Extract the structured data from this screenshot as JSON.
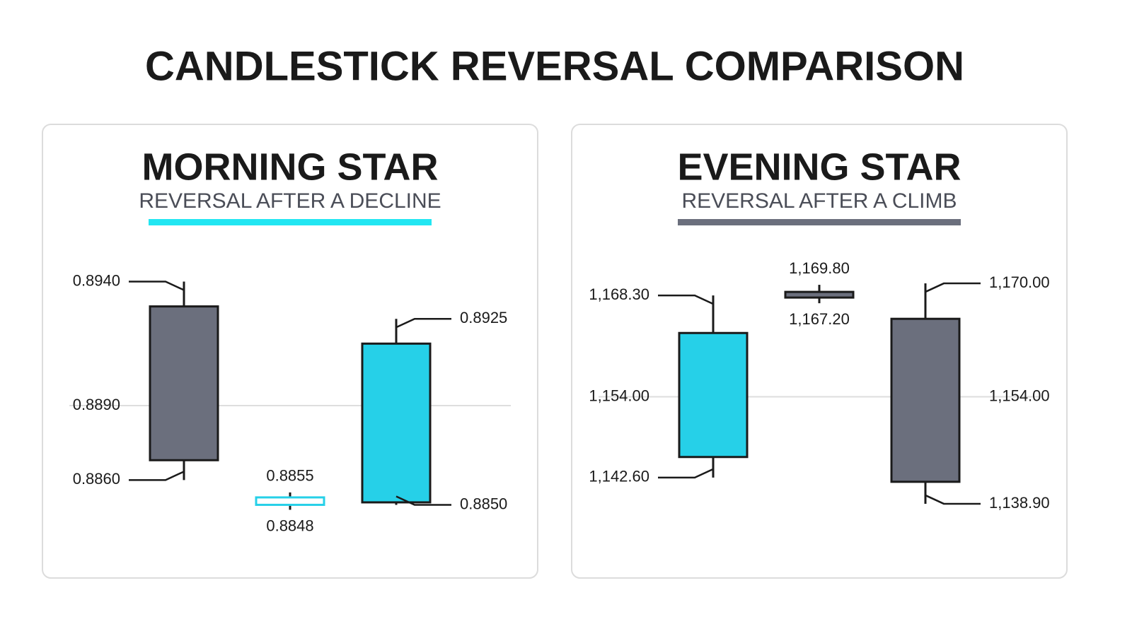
{
  "title": "CANDLESTICK REVERSAL COMPARISON",
  "chart_data": [
    {
      "type": "candlestick",
      "title": "MORNING STAR",
      "subtitle": "REVERSAL AFTER A DECLINE",
      "accent": "#22e6f2",
      "ylim": [
        0.8845,
        0.8945
      ],
      "yticks": [
        {
          "value": 0.889,
          "label": "0.8890"
        }
      ],
      "grid": true,
      "open": [
        0.893,
        0.885,
        0.8851
      ],
      "high": [
        0.894,
        0.8855,
        0.8925
      ],
      "low": [
        0.886,
        0.8848,
        0.885
      ],
      "close": [
        0.8868,
        0.8853,
        0.8915
      ],
      "high_labels": [
        "0.8940",
        "0.8855",
        "0.8925"
      ],
      "low_labels": [
        "0.8860",
        "0.8848",
        "0.8850"
      ],
      "colors": [
        "#6b6f7d",
        "#ffffff",
        "#26d0e8"
      ],
      "outlines": [
        "#1a1a1a",
        "#26d0e8",
        "#1a1a1a"
      ]
    },
    {
      "type": "candlestick",
      "title": "EVENING STAR",
      "subtitle": "REVERSAL AFTER A CLIMB",
      "accent": "#6b6f7d",
      "ylim": [
        1137,
        1172
      ],
      "yticks": [
        {
          "value": 1154,
          "label": "1,154.00"
        }
      ],
      "grid": true,
      "open": [
        1145.5,
        1168.8,
        1165
      ],
      "high": [
        1168.3,
        1169.8,
        1170
      ],
      "low": [
        1142.6,
        1167.2,
        1138.9
      ],
      "close": [
        1163,
        1168.0,
        1142
      ],
      "high_labels": [
        "1,168.30",
        "1,169.80",
        "1,170.00"
      ],
      "low_labels": [
        "1,142.60",
        "1,167.20",
        "1,138.90"
      ],
      "colors": [
        "#26d0e8",
        "#6b6f7d",
        "#6b6f7d"
      ],
      "outlines": [
        "#1a1a1a",
        "#1a1a1a",
        "#1a1a1a"
      ]
    }
  ]
}
